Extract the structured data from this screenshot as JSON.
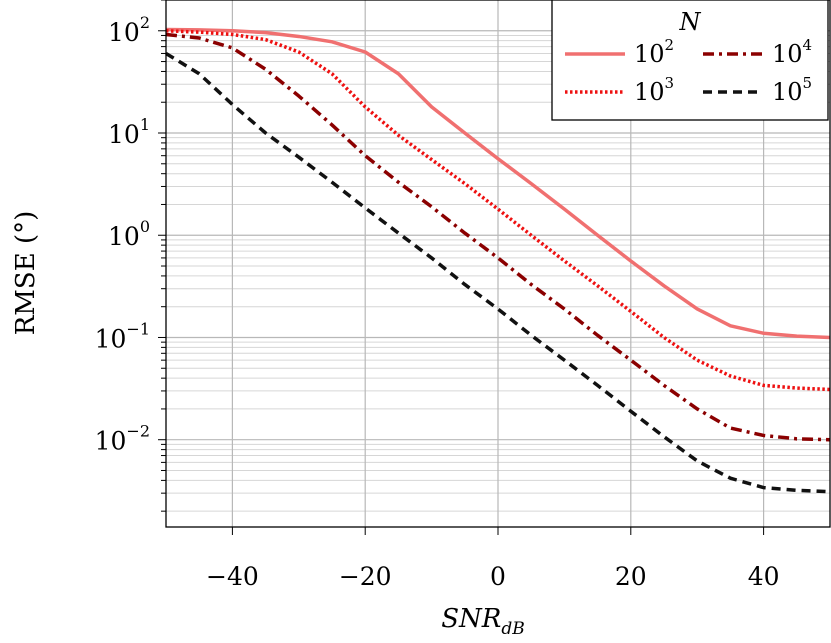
{
  "chart_data": {
    "type": "line",
    "title": "",
    "xlabel": {
      "base": "SNR",
      "sub": "dB"
    },
    "ylabel": "RMSE (°)",
    "xlim": [
      -50,
      50
    ],
    "ylim": [
      0.0014,
      200
    ],
    "yscale": "log",
    "grid": true,
    "legend_position": "top-right",
    "legend_title": "N",
    "x_ticks": [
      {
        "value": -40,
        "label": "−40"
      },
      {
        "value": -20,
        "label": "−20"
      },
      {
        "value": 0,
        "label": "0"
      },
      {
        "value": 20,
        "label": "20"
      },
      {
        "value": 40,
        "label": "40"
      }
    ],
    "y_ticks": [
      {
        "value": 100,
        "base": "10",
        "exp": "2"
      },
      {
        "value": 10,
        "base": "10",
        "exp": "1"
      },
      {
        "value": 1,
        "base": "10",
        "exp": "0"
      },
      {
        "value": 0.1,
        "base": "10",
        "exp": "−1"
      },
      {
        "value": 0.01,
        "base": "10",
        "exp": "−2"
      }
    ],
    "x": [
      -50,
      -45,
      -40,
      -35,
      -30,
      -25,
      -20,
      -15,
      -10,
      -5,
      0,
      5,
      10,
      15,
      20,
      25,
      30,
      35,
      40,
      45,
      50
    ],
    "series": [
      {
        "name_base": "10",
        "name_exp": "2",
        "color": "#f07070",
        "dash": "solid",
        "values": [
          103,
          102,
          100,
          96,
          88,
          78,
          62,
          38,
          18,
          10,
          5.6,
          3.2,
          1.8,
          1.0,
          0.56,
          0.32,
          0.19,
          0.13,
          0.11,
          0.103,
          0.1
        ]
      },
      {
        "name_base": "10",
        "name_exp": "3",
        "color": "#ee1111",
        "dash": "dotted",
        "values": [
          100,
          97,
          92,
          82,
          62,
          38,
          18,
          9.5,
          5.5,
          3.2,
          1.8,
          1.0,
          0.56,
          0.32,
          0.18,
          0.1,
          0.06,
          0.042,
          0.034,
          0.032,
          0.031
        ]
      },
      {
        "name_base": "10",
        "name_exp": "4",
        "color": "#8b0000",
        "dash": "dashdot",
        "values": [
          92,
          85,
          68,
          42,
          23,
          12,
          6.0,
          3.3,
          1.9,
          1.05,
          0.6,
          0.33,
          0.19,
          0.105,
          0.06,
          0.034,
          0.02,
          0.013,
          0.011,
          0.0102,
          0.01
        ]
      },
      {
        "name_base": "10",
        "name_exp": "5",
        "color": "#111111",
        "dash": "dashed",
        "values": [
          60,
          38,
          19,
          10,
          5.8,
          3.3,
          1.85,
          1.05,
          0.6,
          0.33,
          0.19,
          0.105,
          0.06,
          0.034,
          0.019,
          0.0107,
          0.0062,
          0.0042,
          0.0034,
          0.0032,
          0.0031
        ]
      }
    ]
  }
}
